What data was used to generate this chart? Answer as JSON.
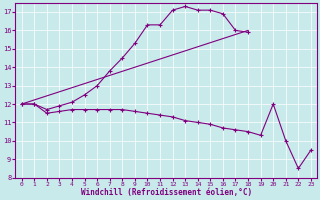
{
  "xlabel": "Windchill (Refroidissement éolien,°C)",
  "background_color": "#c8eaea",
  "line_color": "#800080",
  "grid_color": "#ffffff",
  "xlim": [
    -0.5,
    23.5
  ],
  "ylim": [
    8,
    17.5
  ],
  "yticks": [
    8,
    9,
    10,
    11,
    12,
    13,
    14,
    15,
    16,
    17
  ],
  "xticks": [
    0,
    1,
    2,
    3,
    4,
    5,
    6,
    7,
    8,
    9,
    10,
    11,
    12,
    13,
    14,
    15,
    16,
    17,
    18,
    19,
    20,
    21,
    22,
    23
  ],
  "curve1_x": [
    0,
    1,
    2,
    3,
    4,
    5,
    6,
    7,
    8,
    9,
    10,
    11,
    12,
    13,
    14,
    15,
    16,
    17,
    18
  ],
  "curve1_y": [
    12.0,
    12.0,
    11.7,
    11.9,
    12.1,
    12.5,
    13.0,
    13.8,
    14.5,
    15.3,
    16.3,
    16.3,
    17.1,
    17.3,
    17.1,
    17.1,
    16.9,
    16.0,
    15.9
  ],
  "curve2_x": [
    0,
    1,
    2,
    3,
    4,
    5,
    6,
    7,
    8,
    9,
    10,
    11,
    12,
    13,
    14,
    15,
    16,
    17,
    18,
    19,
    20,
    21,
    22,
    23
  ],
  "curve2_y": [
    12.0,
    12.0,
    11.5,
    11.6,
    11.7,
    11.7,
    11.7,
    11.7,
    11.7,
    11.6,
    11.5,
    11.4,
    11.3,
    11.1,
    11.0,
    10.9,
    10.7,
    10.6,
    10.5,
    10.3,
    12.0,
    10.0,
    8.5,
    9.5
  ],
  "curve3_x": [
    0,
    18
  ],
  "curve3_y": [
    12.0,
    16.0
  ]
}
